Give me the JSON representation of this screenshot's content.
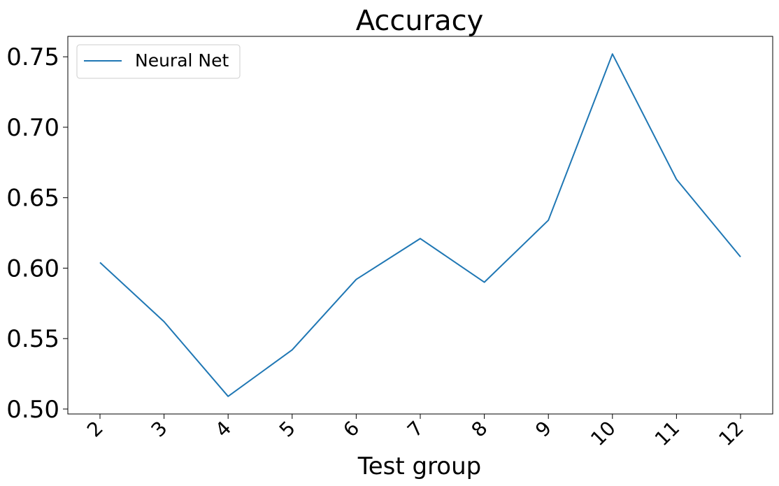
{
  "chart_data": {
    "type": "line",
    "title": "Accuracy",
    "xlabel": "Test group",
    "ylabel": "",
    "categories": [
      "2",
      "3",
      "4",
      "5",
      "6",
      "7",
      "8",
      "9",
      "10",
      "11",
      "12"
    ],
    "series": [
      {
        "name": "Neural Net",
        "color": "#1f77b4",
        "values": [
          0.604,
          0.562,
          0.509,
          0.542,
          0.592,
          0.621,
          0.59,
          0.634,
          0.752,
          0.663,
          0.608
        ]
      }
    ],
    "yticks": [
      "0.50",
      "0.55",
      "0.60",
      "0.65",
      "0.70",
      "0.75"
    ],
    "ytick_values": [
      0.5,
      0.55,
      0.6,
      0.65,
      0.7,
      0.75
    ],
    "ylim": [
      0.4965,
      0.7645
    ],
    "grid": false,
    "legend_position": "top-left"
  }
}
